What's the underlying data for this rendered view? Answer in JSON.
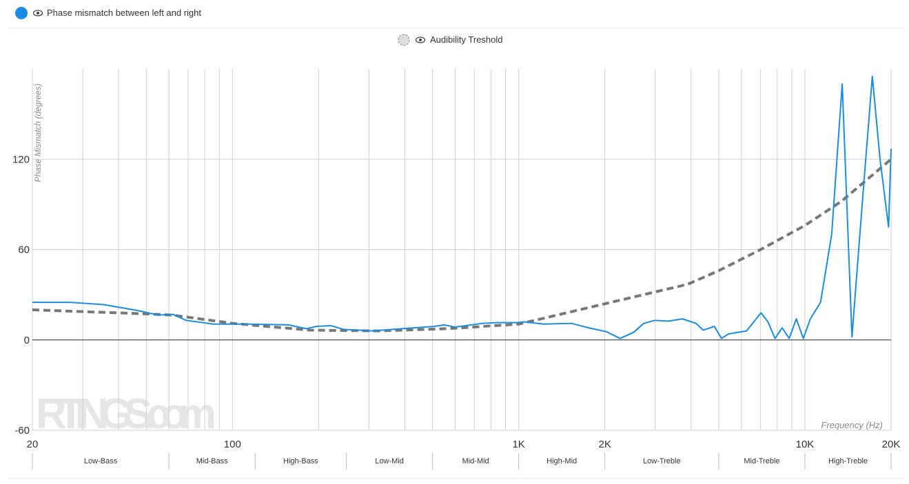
{
  "chart_data": {
    "type": "line",
    "legend": [
      "Phase mismatch between left and right",
      "Audibility Treshold"
    ],
    "ylabel": "Phase Mismatch (degrees)",
    "xlabel": "Frequency (Hz)",
    "watermark": "RTINGS.com",
    "log_x": true,
    "grid": true,
    "xlim": [
      20,
      20000
    ],
    "ylim": [
      -60,
      180
    ],
    "xticks": [
      20,
      100,
      {
        "value": 1000,
        "label": "1K"
      },
      {
        "value": 2000,
        "label": "2K"
      },
      {
        "value": 10000,
        "label": "10K"
      },
      {
        "value": 20000,
        "label": "20K"
      }
    ],
    "xgrid": [
      30,
      40,
      50,
      60,
      70,
      80,
      90,
      200,
      300,
      400,
      500,
      600,
      700,
      800,
      900,
      3000,
      4000,
      5000,
      6000,
      7000,
      8000,
      9000
    ],
    "yticks": [
      -60,
      0,
      60,
      120
    ],
    "bands": [
      "Low-Bass",
      "Mid-Bass",
      "High-Bass",
      "Low-Mid",
      "Mid-Mid",
      "High-Mid",
      "Low-Treble",
      "Mid-Treble",
      "High-Treble"
    ],
    "band_edges": [
      20,
      60,
      120,
      250,
      500,
      1000,
      2000,
      5000,
      10000,
      20000
    ],
    "series": [
      {
        "name": "Phase mismatch between left and right",
        "color": "#1a8be0",
        "style": "solid",
        "x": [
          20,
          26.8,
          35.4,
          46.8,
          55.1,
          61.9,
          68.9,
          85.7,
          113,
          157,
          181,
          197,
          220,
          245,
          307,
          428,
          507,
          550,
          599,
          748,
          837,
          987,
          1043,
          1226,
          1529,
          1760,
          2025,
          2261,
          2518,
          2735,
          2992,
          3340,
          3730,
          4165,
          4411,
          4826,
          5112,
          5410,
          6255,
          7022,
          7430,
          7860,
          8330,
          8810,
          9330,
          9870,
          10450,
          11340,
          12400,
          13500,
          14600,
          16000,
          17200,
          18300,
          19600,
          20000
        ],
        "values": [
          25,
          25,
          23.5,
          19.5,
          16.5,
          17,
          13,
          10.5,
          10.5,
          10,
          7.5,
          9,
          9.5,
          7,
          6,
          8,
          9,
          10,
          8.5,
          11,
          11.5,
          11.5,
          12,
          10.5,
          11,
          8,
          5.5,
          1,
          5,
          11,
          13,
          12.5,
          14,
          11,
          6.5,
          9,
          1,
          4,
          6,
          18,
          12,
          1,
          8,
          1,
          14,
          1,
          14,
          25,
          70,
          170,
          2,
          100,
          175,
          120,
          75,
          127
        ]
      },
      {
        "name": "Audibility Treshold",
        "color": "#777777",
        "style": "dashed",
        "x": [
          20,
          46.8,
          61.9,
          100,
          186,
          324,
          567,
          1000,
          2000,
          3900,
          5000,
          7000,
          10000,
          13400,
          20000
        ],
        "values": [
          20,
          17.5,
          16.5,
          11,
          6.5,
          6,
          7.5,
          10.5,
          24,
          37,
          46,
          60,
          76,
          92,
          120
        ]
      }
    ]
  }
}
